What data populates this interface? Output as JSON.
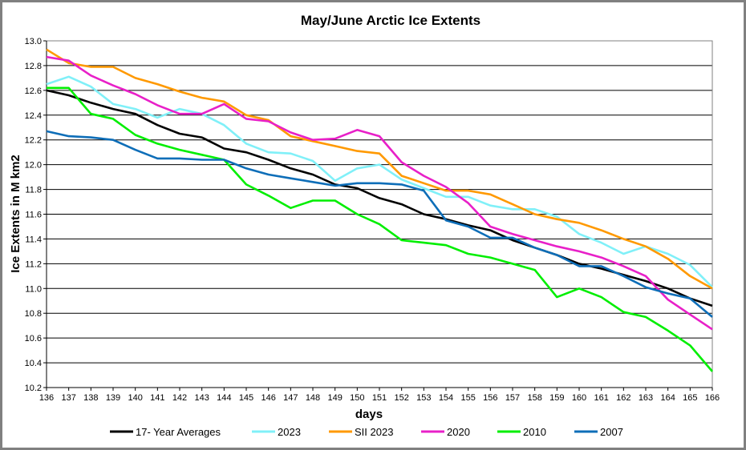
{
  "chart_data": {
    "type": "line",
    "title": "May/June Arctic Ice Extents",
    "xlabel": "days",
    "ylabel": "Ice Extents in M km2",
    "xlim": [
      136,
      166
    ],
    "ylim": [
      10.2,
      13.0
    ],
    "grid": true,
    "legend_position": "bottom",
    "x": [
      136,
      137,
      138,
      139,
      140,
      141,
      142,
      143,
      144,
      145,
      146,
      147,
      148,
      149,
      150,
      151,
      152,
      153,
      154,
      155,
      156,
      157,
      158,
      159,
      160,
      161,
      162,
      163,
      164,
      165,
      166
    ],
    "x_tick_labels": [
      "136",
      "137",
      "138",
      "139",
      "140",
      "141",
      "142",
      "143",
      "144",
      "145",
      "146",
      "147",
      "148",
      "149",
      "150",
      "151",
      "152",
      "153",
      "154",
      "155",
      "156",
      "157",
      "158",
      "159",
      "160",
      "161",
      "162",
      "163",
      "164",
      "165",
      "166"
    ],
    "y_tick_labels": [
      "10.2",
      "10.4",
      "10.6",
      "10.8",
      "11.0",
      "11.2",
      "11.4",
      "11.6",
      "11.8",
      "12.0",
      "12.2",
      "12.4",
      "12.6",
      "12.8",
      "13.0"
    ],
    "series": [
      {
        "name": "17- Year Averages",
        "color": "#000000",
        "values": [
          12.6,
          12.56,
          12.5,
          12.45,
          12.41,
          12.32,
          12.25,
          12.22,
          12.13,
          12.1,
          12.04,
          11.97,
          11.92,
          11.84,
          11.81,
          11.73,
          11.68,
          11.6,
          11.56,
          11.51,
          11.47,
          11.39,
          11.33,
          11.27,
          11.2,
          11.16,
          11.11,
          11.06,
          11.0,
          10.92,
          10.86
        ]
      },
      {
        "name": "2023",
        "color": "#80F0F8",
        "values": [
          12.65,
          12.71,
          12.63,
          12.49,
          12.45,
          12.38,
          12.45,
          12.41,
          12.32,
          12.17,
          12.1,
          12.09,
          12.03,
          11.87,
          11.97,
          12.0,
          11.88,
          11.81,
          11.74,
          11.74,
          11.67,
          11.64,
          11.64,
          11.58,
          11.44,
          11.37,
          11.28,
          11.34,
          11.28,
          11.19,
          11.01
        ]
      },
      {
        "name": "SII 2023",
        "color": "#FF9900",
        "values": [
          12.93,
          12.82,
          12.79,
          12.79,
          12.7,
          12.65,
          12.59,
          12.54,
          12.51,
          12.4,
          12.36,
          12.23,
          12.19,
          12.15,
          12.11,
          12.09,
          11.91,
          11.85,
          11.79,
          11.79,
          11.76,
          11.68,
          11.6,
          11.56,
          11.53,
          11.47,
          11.4,
          11.34,
          11.24,
          11.1,
          11.0
        ]
      },
      {
        "name": "2020",
        "color": "#E820C8",
        "values": [
          12.87,
          12.84,
          12.72,
          12.64,
          12.57,
          12.48,
          12.41,
          12.41,
          12.49,
          12.37,
          12.35,
          12.26,
          12.2,
          12.21,
          12.28,
          12.23,
          12.02,
          11.91,
          11.82,
          11.69,
          11.5,
          11.44,
          11.39,
          11.34,
          11.3,
          11.25,
          11.18,
          11.1,
          10.91,
          10.79,
          10.67
        ]
      },
      {
        "name": "2010",
        "color": "#00EE00",
        "values": [
          12.62,
          12.62,
          12.41,
          12.37,
          12.24,
          12.17,
          12.12,
          12.08,
          12.04,
          11.84,
          11.75,
          11.65,
          11.71,
          11.71,
          11.6,
          11.52,
          11.39,
          11.37,
          11.35,
          11.28,
          11.25,
          11.2,
          11.15,
          10.93,
          11.0,
          10.93,
          10.81,
          10.77,
          10.66,
          10.54,
          10.33
        ]
      },
      {
        "name": "2007",
        "color": "#0E6EB8",
        "values": [
          12.27,
          12.23,
          12.22,
          12.2,
          12.12,
          12.05,
          12.05,
          12.04,
          12.04,
          11.97,
          11.92,
          11.89,
          11.86,
          11.83,
          11.85,
          11.85,
          11.84,
          11.79,
          11.55,
          11.5,
          11.41,
          11.41,
          11.33,
          11.27,
          11.18,
          11.18,
          11.1,
          11.01,
          10.96,
          10.92,
          10.77
        ]
      }
    ]
  }
}
